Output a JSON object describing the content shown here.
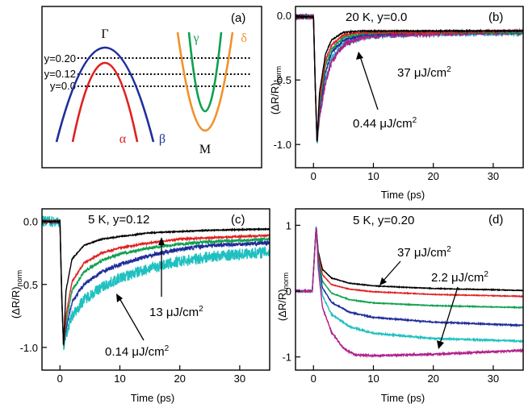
{
  "panel_a": {
    "label": "(a)",
    "gamma_label": "Γ",
    "m_label": "M",
    "bands": [
      {
        "name": "α",
        "color": "#e02020"
      },
      {
        "name": "β",
        "color": "#1f2e9a"
      },
      {
        "name": "γ",
        "color": "#10a050"
      },
      {
        "name": "δ",
        "color": "#f0922a"
      }
    ],
    "levels": [
      "y=0.20",
      "y=0.12",
      "y=0.0"
    ]
  },
  "colors": {
    "black": "#000000",
    "red": "#e02020",
    "green": "#10a050",
    "blue": "#1f2e9a",
    "cyan": "#20c0c0",
    "magenta": "#b0208a"
  },
  "chart_data": [
    {
      "id": "b",
      "type": "line",
      "panel_label": "(b)",
      "title": "20 K, y=0.0",
      "xlabel": "Time (ps)",
      "ylabel": "(ΔR/R)norm",
      "xlim": [
        -3,
        35
      ],
      "ylim": [
        -1.18,
        0.07
      ],
      "xticks": [
        0,
        10,
        20,
        30
      ],
      "yticks": [
        {
          "v": 0,
          "label": "0.0"
        },
        {
          "v": -0.5,
          "label": "-0.5"
        },
        {
          "v": -1.0,
          "label": "-1.0"
        }
      ],
      "annotations": [
        "37 μJ/cm²",
        "0.44 μJ/cm²"
      ],
      "series": [
        {
          "color": "cyan",
          "values": [
            [
              -3,
              -0.01
            ],
            [
              0,
              -0.01
            ],
            [
              0.3,
              -0.55
            ],
            [
              0.6,
              -0.99
            ],
            [
              1,
              -0.78
            ],
            [
              2,
              -0.5
            ],
            [
              3,
              -0.34
            ],
            [
              5,
              -0.22
            ],
            [
              8,
              -0.17
            ],
            [
              12,
              -0.15
            ],
            [
              20,
              -0.14
            ],
            [
              35,
              -0.13
            ]
          ],
          "noise": 0.025
        },
        {
          "color": "magenta",
          "values": [
            [
              -3,
              -0.01
            ],
            [
              0,
              -0.01
            ],
            [
              0.3,
              -0.55
            ],
            [
              0.6,
              -0.99
            ],
            [
              1,
              -0.8
            ],
            [
              2,
              -0.52
            ],
            [
              3,
              -0.36
            ],
            [
              5,
              -0.23
            ],
            [
              8,
              -0.17
            ],
            [
              12,
              -0.15
            ],
            [
              20,
              -0.14
            ],
            [
              35,
              -0.13
            ]
          ],
          "noise": 0.022
        },
        {
          "color": "blue",
          "values": [
            [
              -3,
              -0.01
            ],
            [
              0,
              -0.01
            ],
            [
              0.3,
              -0.55
            ],
            [
              0.6,
              -0.99
            ],
            [
              1,
              -0.74
            ],
            [
              2,
              -0.44
            ],
            [
              3,
              -0.29
            ],
            [
              5,
              -0.19
            ],
            [
              8,
              -0.15
            ],
            [
              12,
              -0.14
            ],
            [
              20,
              -0.13
            ],
            [
              35,
              -0.13
            ]
          ],
          "noise": 0.012
        },
        {
          "color": "green",
          "values": [
            [
              -3,
              -0.01
            ],
            [
              0,
              -0.01
            ],
            [
              0.3,
              -0.55
            ],
            [
              0.6,
              -0.99
            ],
            [
              1,
              -0.7
            ],
            [
              2,
              -0.39
            ],
            [
              3,
              -0.26
            ],
            [
              5,
              -0.17
            ],
            [
              8,
              -0.14
            ],
            [
              12,
              -0.13
            ],
            [
              20,
              -0.13
            ],
            [
              35,
              -0.13
            ]
          ],
          "noise": 0.008
        },
        {
          "color": "red",
          "values": [
            [
              -3,
              -0.01
            ],
            [
              0,
              -0.01
            ],
            [
              0.3,
              -0.55
            ],
            [
              0.6,
              -0.99
            ],
            [
              1,
              -0.66
            ],
            [
              2,
              -0.35
            ],
            [
              3,
              -0.23
            ],
            [
              5,
              -0.15
            ],
            [
              8,
              -0.13
            ],
            [
              12,
              -0.13
            ],
            [
              20,
              -0.13
            ],
            [
              35,
              -0.12
            ]
          ],
          "noise": 0.006
        },
        {
          "color": "black",
          "values": [
            [
              -3,
              -0.01
            ],
            [
              0,
              -0.01
            ],
            [
              0.3,
              -0.55
            ],
            [
              0.6,
              -0.99
            ],
            [
              1,
              -0.6
            ],
            [
              2,
              -0.3
            ],
            [
              3,
              -0.19
            ],
            [
              5,
              -0.13
            ],
            [
              8,
              -0.12
            ],
            [
              12,
              -0.12
            ],
            [
              20,
              -0.12
            ],
            [
              35,
              -0.12
            ]
          ],
          "noise": 0.004
        }
      ]
    },
    {
      "id": "c",
      "type": "line",
      "panel_label": "(c)",
      "title": "5 K, y=0.12",
      "xlabel": "Time (ps)",
      "ylabel": "(ΔR/R)norm",
      "xlim": [
        -3,
        35
      ],
      "ylim": [
        -1.18,
        0.1
      ],
      "xticks": [
        0,
        10,
        20,
        30
      ],
      "yticks": [
        {
          "v": 0,
          "label": "0.0"
        },
        {
          "v": -0.5,
          "label": "-0.5"
        },
        {
          "v": -1.0,
          "label": "-1.0"
        }
      ],
      "annotations": [
        "13 μJ/cm²",
        "0.14 μJ/cm²"
      ],
      "series": [
        {
          "color": "cyan",
          "values": [
            [
              -3,
              0.0
            ],
            [
              0,
              0.0
            ],
            [
              0.3,
              -0.6
            ],
            [
              0.6,
              -0.99
            ],
            [
              1,
              -0.9
            ],
            [
              2,
              -0.75
            ],
            [
              4,
              -0.62
            ],
            [
              7,
              -0.52
            ],
            [
              10,
              -0.45
            ],
            [
              15,
              -0.37
            ],
            [
              20,
              -0.32
            ],
            [
              25,
              -0.28
            ],
            [
              35,
              -0.24
            ]
          ],
          "noise": 0.045
        },
        {
          "color": "blue",
          "values": [
            [
              -3,
              0.0
            ],
            [
              0,
              0.0
            ],
            [
              0.3,
              -0.6
            ],
            [
              0.6,
              -0.99
            ],
            [
              1,
              -0.86
            ],
            [
              2,
              -0.64
            ],
            [
              4,
              -0.5
            ],
            [
              7,
              -0.4
            ],
            [
              10,
              -0.34
            ],
            [
              15,
              -0.27
            ],
            [
              20,
              -0.22
            ],
            [
              25,
              -0.19
            ],
            [
              35,
              -0.17
            ]
          ],
          "noise": 0.015
        },
        {
          "color": "green",
          "values": [
            [
              -3,
              0.0
            ],
            [
              0,
              0.0
            ],
            [
              0.3,
              -0.6
            ],
            [
              0.6,
              -0.99
            ],
            [
              1,
              -0.8
            ],
            [
              2,
              -0.55
            ],
            [
              4,
              -0.4
            ],
            [
              7,
              -0.31
            ],
            [
              10,
              -0.26
            ],
            [
              15,
              -0.21
            ],
            [
              20,
              -0.18
            ],
            [
              25,
              -0.16
            ],
            [
              35,
              -0.14
            ]
          ],
          "noise": 0.01
        },
        {
          "color": "red",
          "values": [
            [
              -3,
              0.0
            ],
            [
              0,
              0.0
            ],
            [
              0.3,
              -0.6
            ],
            [
              0.6,
              -0.99
            ],
            [
              1,
              -0.75
            ],
            [
              2,
              -0.48
            ],
            [
              4,
              -0.33
            ],
            [
              7,
              -0.25
            ],
            [
              10,
              -0.21
            ],
            [
              15,
              -0.17
            ],
            [
              20,
              -0.14
            ],
            [
              25,
              -0.13
            ],
            [
              35,
              -0.11
            ]
          ],
          "noise": 0.006
        },
        {
          "color": "black",
          "values": [
            [
              -3,
              0.0
            ],
            [
              0,
              0.0
            ],
            [
              0.3,
              -0.6
            ],
            [
              0.6,
              -0.99
            ],
            [
              1,
              -0.55
            ],
            [
              2,
              -0.3
            ],
            [
              4,
              -0.19
            ],
            [
              7,
              -0.14
            ],
            [
              10,
              -0.12
            ],
            [
              15,
              -0.09
            ],
            [
              20,
              -0.08
            ],
            [
              25,
              -0.07
            ],
            [
              35,
              -0.06
            ]
          ],
          "noise": 0.004
        }
      ]
    },
    {
      "id": "d",
      "type": "line",
      "panel_label": "(d)",
      "title": "5 K, y=0.20",
      "xlabel": "Time (ps)",
      "ylabel": "(ΔR/R)norm",
      "xlim": [
        -3,
        35
      ],
      "ylim": [
        -1.2,
        1.25
      ],
      "xticks": [
        0,
        10,
        20,
        30
      ],
      "yticks": [
        {
          "v": 1,
          "label": "1"
        },
        {
          "v": 0,
          "label": "0"
        },
        {
          "v": -1,
          "label": "-1"
        }
      ],
      "annotations": [
        "37 μJ/cm²",
        "2.2 μJ/cm²"
      ],
      "series": [
        {
          "color": "black",
          "values": [
            [
              -3,
              0.0
            ],
            [
              -0.2,
              0.0
            ],
            [
              0.2,
              0.6
            ],
            [
              0.45,
              0.99
            ],
            [
              0.8,
              0.6
            ],
            [
              1.5,
              0.33
            ],
            [
              3,
              0.2
            ],
            [
              6,
              0.12
            ],
            [
              10,
              0.08
            ],
            [
              20,
              0.04
            ],
            [
              35,
              0.01
            ]
          ],
          "noise": 0.005
        },
        {
          "color": "red",
          "values": [
            [
              -3,
              0.0
            ],
            [
              -0.2,
              0.0
            ],
            [
              0.2,
              0.6
            ],
            [
              0.45,
              0.99
            ],
            [
              0.8,
              0.55
            ],
            [
              1.5,
              0.25
            ],
            [
              3,
              0.1
            ],
            [
              6,
              0.03
            ],
            [
              10,
              -0.01
            ],
            [
              20,
              -0.05
            ],
            [
              35,
              -0.08
            ]
          ],
          "noise": 0.005
        },
        {
          "color": "green",
          "values": [
            [
              -3,
              0.0
            ],
            [
              -0.2,
              0.0
            ],
            [
              0.2,
              0.6
            ],
            [
              0.45,
              0.99
            ],
            [
              0.8,
              0.5
            ],
            [
              1.5,
              0.15
            ],
            [
              3,
              -0.03
            ],
            [
              6,
              -0.13
            ],
            [
              10,
              -0.18
            ],
            [
              20,
              -0.22
            ],
            [
              35,
              -0.25
            ]
          ],
          "noise": 0.006
        },
        {
          "color": "blue",
          "values": [
            [
              -3,
              0.0
            ],
            [
              -0.2,
              0.0
            ],
            [
              0.2,
              0.6
            ],
            [
              0.45,
              0.99
            ],
            [
              0.8,
              0.45
            ],
            [
              1.5,
              0.05
            ],
            [
              3,
              -0.17
            ],
            [
              6,
              -0.32
            ],
            [
              10,
              -0.4
            ],
            [
              20,
              -0.47
            ],
            [
              35,
              -0.52
            ]
          ],
          "noise": 0.008
        },
        {
          "color": "cyan",
          "values": [
            [
              -3,
              0.0
            ],
            [
              -0.2,
              0.0
            ],
            [
              0.2,
              0.6
            ],
            [
              0.45,
              0.99
            ],
            [
              0.8,
              0.4
            ],
            [
              1.5,
              -0.07
            ],
            [
              3,
              -0.35
            ],
            [
              6,
              -0.54
            ],
            [
              10,
              -0.64
            ],
            [
              20,
              -0.72
            ],
            [
              35,
              -0.76
            ]
          ],
          "noise": 0.01
        },
        {
          "color": "magenta",
          "values": [
            [
              -3,
              0.0
            ],
            [
              -0.2,
              0.0
            ],
            [
              0.2,
              0.6
            ],
            [
              0.45,
              0.99
            ],
            [
              0.8,
              0.35
            ],
            [
              1.5,
              -0.25
            ],
            [
              3,
              -0.62
            ],
            [
              5,
              -0.87
            ],
            [
              7,
              -0.97
            ],
            [
              10,
              -0.98
            ],
            [
              20,
              -0.96
            ],
            [
              35,
              -0.9
            ]
          ],
          "noise": 0.012
        }
      ]
    }
  ]
}
